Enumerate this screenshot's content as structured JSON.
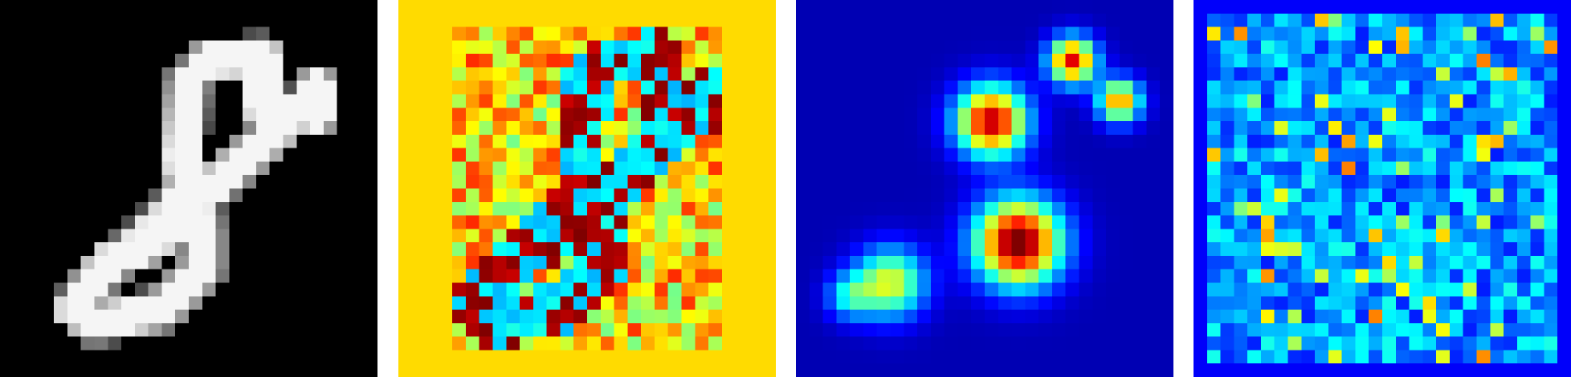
{
  "panels": [
    {
      "id": "digit",
      "kind": "mnist-digit-grayscale",
      "colormap": "gray",
      "grid": 28
    },
    {
      "id": "pattern",
      "kind": "heatmap-signed-pattern",
      "colormap": "jet",
      "grid": 28
    },
    {
      "id": "blobs",
      "kind": "heatmap-sparse-blobs",
      "colormap": "jet",
      "grid": 28
    },
    {
      "id": "noise",
      "kind": "heatmap-noisy",
      "colormap": "jet",
      "grid": 28
    }
  ],
  "colors": {
    "page_background": "#ffffff",
    "gray_black": "#000000",
    "jet_low": "#00007f",
    "jet_mid": "#7fff7f",
    "jet_high": "#7f0000"
  }
}
